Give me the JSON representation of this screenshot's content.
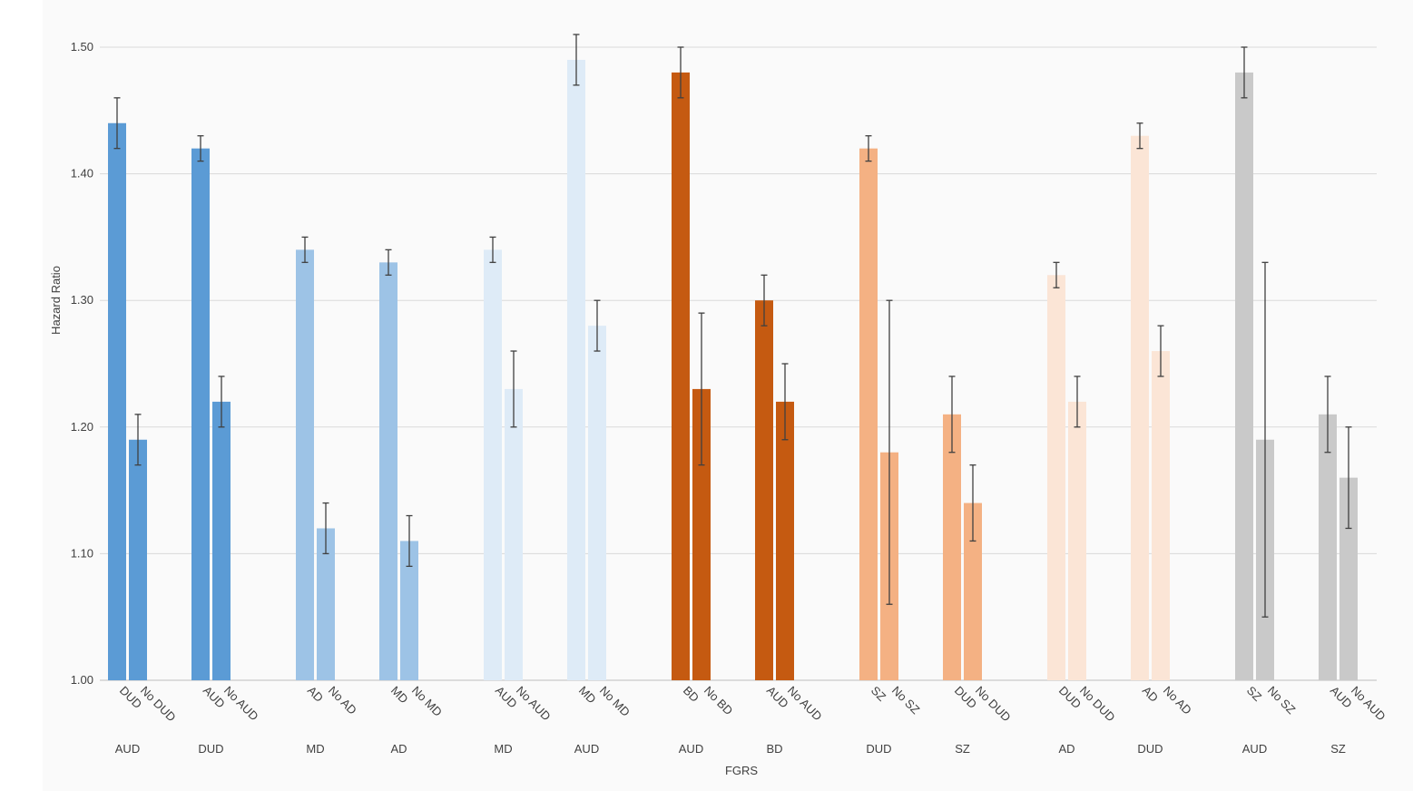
{
  "chart_data": {
    "type": "bar",
    "title": "",
    "xlabel": "FGRS",
    "ylabel": "Hazard Ratio",
    "ylim": [
      1.0,
      1.5
    ],
    "yticks": [
      "1.00",
      "1.10",
      "1.20",
      "1.30",
      "1.40",
      "1.50"
    ],
    "grid": true,
    "legend": "none",
    "groups": [
      {
        "outcome": "AUD",
        "color": "#5b9bd5",
        "bars": [
          {
            "label": "DUD",
            "value": 1.44,
            "err_low": 1.42,
            "err_high": 1.46
          },
          {
            "label": "No DUD",
            "value": 1.19,
            "err_low": 1.17,
            "err_high": 1.21
          }
        ]
      },
      {
        "outcome": "DUD",
        "color": "#5b9bd5",
        "bars": [
          {
            "label": "AUD",
            "value": 1.42,
            "err_low": 1.41,
            "err_high": 1.43
          },
          {
            "label": "No AUD",
            "value": 1.22,
            "err_low": 1.2,
            "err_high": 1.24
          }
        ]
      },
      {
        "outcome": "MD",
        "color": "#9dc3e6",
        "bars": [
          {
            "label": "AD",
            "value": 1.34,
            "err_low": 1.33,
            "err_high": 1.35
          },
          {
            "label": "No AD",
            "value": 1.12,
            "err_low": 1.1,
            "err_high": 1.14
          }
        ]
      },
      {
        "outcome": "AD",
        "color": "#9dc3e6",
        "bars": [
          {
            "label": "MD",
            "value": 1.33,
            "err_low": 1.32,
            "err_high": 1.34
          },
          {
            "label": "No MD",
            "value": 1.11,
            "err_low": 1.09,
            "err_high": 1.13
          }
        ]
      },
      {
        "outcome": "MD",
        "color": "#deebf7",
        "bars": [
          {
            "label": "AUD",
            "value": 1.34,
            "err_low": 1.33,
            "err_high": 1.35
          },
          {
            "label": "No AUD",
            "value": 1.23,
            "err_low": 1.2,
            "err_high": 1.26
          }
        ]
      },
      {
        "outcome": "AUD",
        "color": "#deebf7",
        "bars": [
          {
            "label": "MD",
            "value": 1.49,
            "err_low": 1.47,
            "err_high": 1.51
          },
          {
            "label": "No MD",
            "value": 1.28,
            "err_low": 1.26,
            "err_high": 1.3
          }
        ]
      },
      {
        "outcome": "AUD",
        "color": "#c55a11",
        "bars": [
          {
            "label": "BD",
            "value": 1.48,
            "err_low": 1.46,
            "err_high": 1.5
          },
          {
            "label": "No BD",
            "value": 1.23,
            "err_low": 1.17,
            "err_high": 1.29
          }
        ]
      },
      {
        "outcome": "BD",
        "color": "#c55a11",
        "bars": [
          {
            "label": "AUD",
            "value": 1.3,
            "err_low": 1.28,
            "err_high": 1.32
          },
          {
            "label": "No AUD",
            "value": 1.22,
            "err_low": 1.19,
            "err_high": 1.25
          }
        ]
      },
      {
        "outcome": "DUD",
        "color": "#f4b183",
        "bars": [
          {
            "label": "SZ",
            "value": 1.42,
            "err_low": 1.41,
            "err_high": 1.43
          },
          {
            "label": "No SZ",
            "value": 1.18,
            "err_low": 1.06,
            "err_high": 1.3
          }
        ]
      },
      {
        "outcome": "SZ",
        "color": "#f4b183",
        "bars": [
          {
            "label": "DUD",
            "value": 1.21,
            "err_low": 1.18,
            "err_high": 1.24
          },
          {
            "label": "No DUD",
            "value": 1.14,
            "err_low": 1.11,
            "err_high": 1.17
          }
        ]
      },
      {
        "outcome": "AD",
        "color": "#fbe5d6",
        "bars": [
          {
            "label": "DUD",
            "value": 1.32,
            "err_low": 1.31,
            "err_high": 1.33
          },
          {
            "label": "No DUD",
            "value": 1.22,
            "err_low": 1.2,
            "err_high": 1.24
          }
        ]
      },
      {
        "outcome": "DUD",
        "color": "#fbe5d6",
        "bars": [
          {
            "label": "AD",
            "value": 1.43,
            "err_low": 1.42,
            "err_high": 1.44
          },
          {
            "label": "No AD",
            "value": 1.26,
            "err_low": 1.24,
            "err_high": 1.28
          }
        ]
      },
      {
        "outcome": "AUD",
        "color": "#c9c9c9",
        "bars": [
          {
            "label": "SZ",
            "value": 1.48,
            "err_low": 1.46,
            "err_high": 1.5
          },
          {
            "label": "No SZ",
            "value": 1.19,
            "err_low": 1.05,
            "err_high": 1.33
          }
        ]
      },
      {
        "outcome": "SZ",
        "color": "#c9c9c9",
        "bars": [
          {
            "label": "AUD",
            "value": 1.21,
            "err_low": 1.18,
            "err_high": 1.24
          },
          {
            "label": "No AUD",
            "value": 1.16,
            "err_low": 1.12,
            "err_high": 1.2
          }
        ]
      }
    ]
  }
}
